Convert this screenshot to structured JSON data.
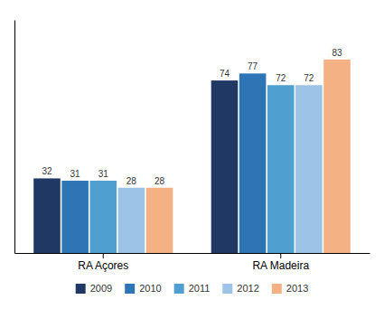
{
  "chart_data": {
    "type": "bar",
    "categories": [
      "RA Açores",
      "RA Madeira"
    ],
    "series": [
      {
        "name": "2009",
        "color": "#1F3864",
        "values": [
          32,
          74
        ]
      },
      {
        "name": "2010",
        "color": "#2E75B6",
        "values": [
          31,
          77
        ]
      },
      {
        "name": "2011",
        "color": "#4F9FD0",
        "values": [
          31,
          72
        ]
      },
      {
        "name": "2012",
        "color": "#9DC3E6",
        "values": [
          28,
          72
        ]
      },
      {
        "name": "2013",
        "color": "#F4B183",
        "values": [
          28,
          83
        ]
      }
    ],
    "ylim": [
      0,
      100
    ],
    "data_labels": true,
    "tick_labels": "x",
    "grid": false,
    "legend": "bottom"
  }
}
